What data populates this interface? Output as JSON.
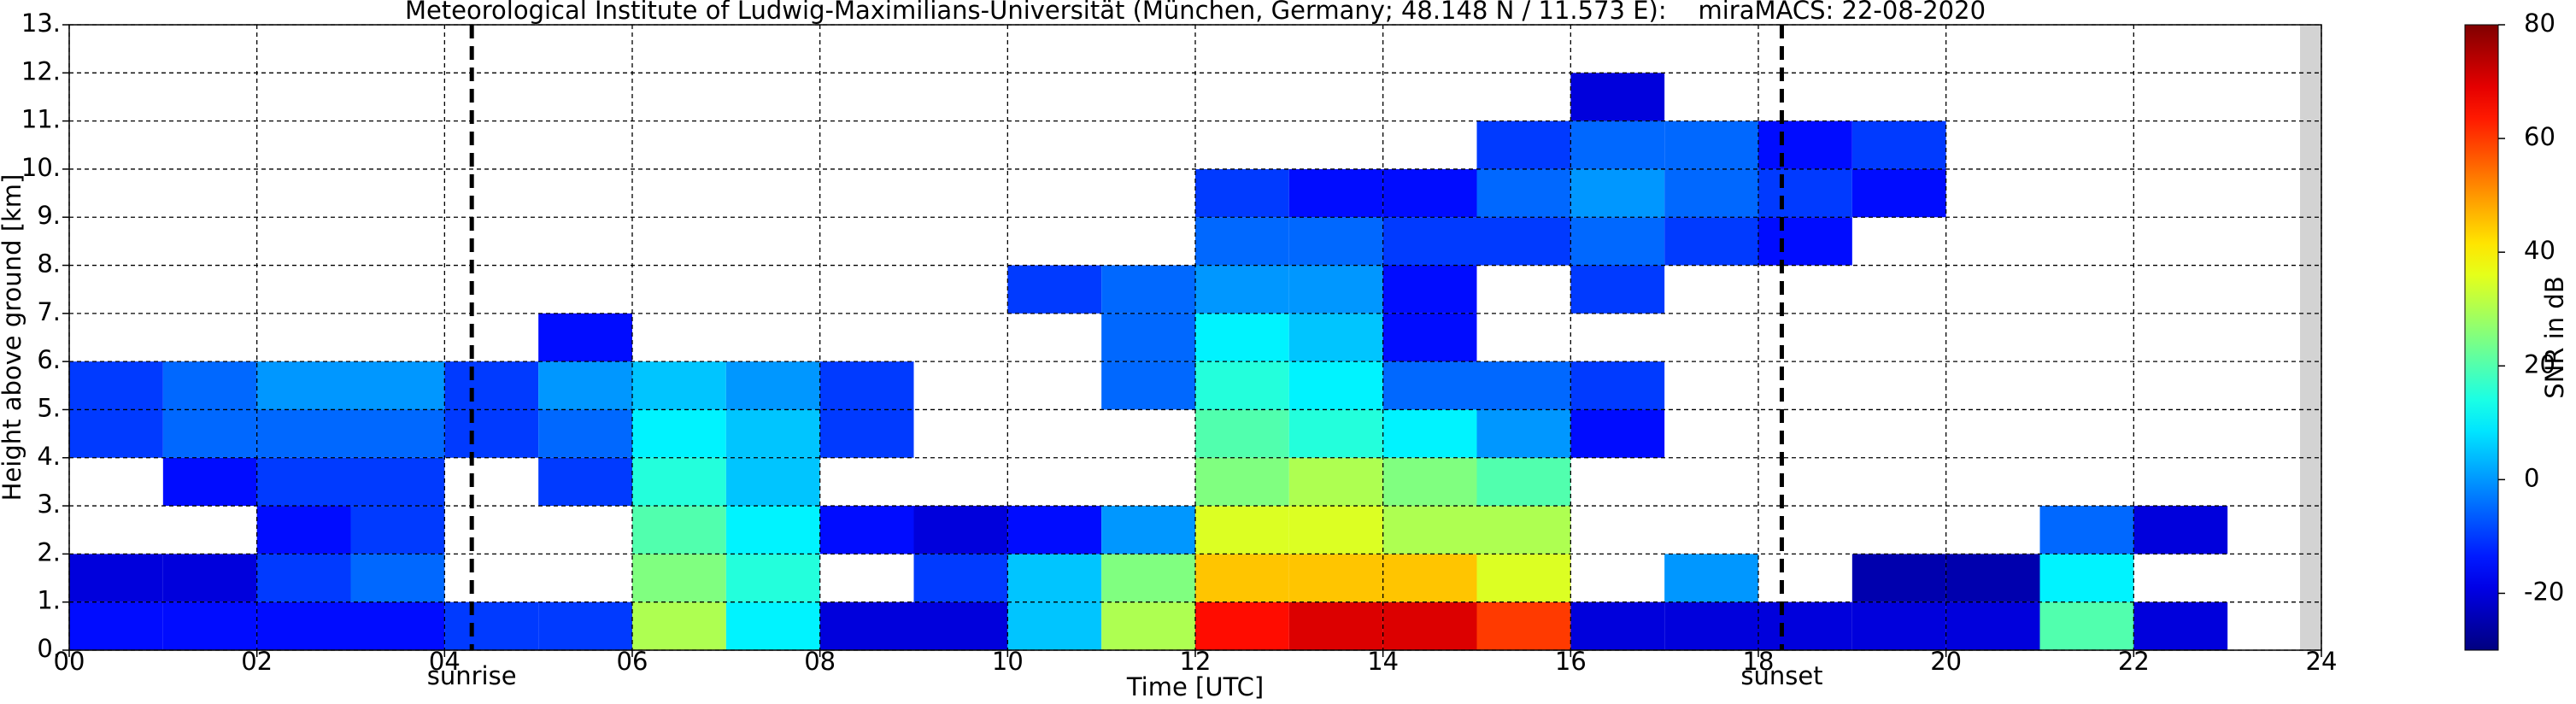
{
  "chart_data": {
    "type": "heatmap",
    "title": "Meteorological Institute of Ludwig-Maximilians-Universität (München, Germany; 48.148 N / 11.573 E):    miraMACS: 22-08-2020",
    "xlabel": "Time [UTC]",
    "ylabel": "Height above ground [km]",
    "colorbar_label": "SNR in dB",
    "colormap": "jet",
    "grid": true,
    "xlim": [
      0,
      24
    ],
    "ylim": [
      0,
      13
    ],
    "clim": [
      -30,
      80
    ],
    "xticks": [
      {
        "value": 0,
        "label": "00"
      },
      {
        "value": 2,
        "label": "02"
      },
      {
        "value": 4,
        "label": "04"
      },
      {
        "value": 6,
        "label": "06"
      },
      {
        "value": 8,
        "label": "08"
      },
      10,
      12,
      14,
      16,
      18,
      20,
      22,
      24
    ],
    "yticks": [
      {
        "value": 0,
        "label": "0."
      },
      {
        "value": 1,
        "label": "1."
      },
      {
        "value": 2,
        "label": "2."
      },
      {
        "value": 3,
        "label": "3."
      },
      {
        "value": 4,
        "label": "4."
      },
      {
        "value": 5,
        "label": "5."
      },
      {
        "value": 6,
        "label": "6."
      },
      {
        "value": 7,
        "label": "7."
      },
      {
        "value": 8,
        "label": "8."
      },
      {
        "value": 9,
        "label": "9."
      },
      {
        "value": 10,
        "label": "10."
      },
      {
        "value": 11,
        "label": "11."
      },
      {
        "value": 12,
        "label": "12."
      },
      {
        "value": 13,
        "label": "13."
      }
    ],
    "cticks": [
      -20,
      0,
      20,
      40,
      60,
      80
    ],
    "annotations": [
      {
        "text": "sunrise",
        "x": 4.29
      },
      {
        "text": "sunset",
        "x": 18.25
      }
    ],
    "x": [
      0,
      1,
      2,
      3,
      4,
      5,
      6,
      7,
      8,
      9,
      10,
      11,
      12,
      13,
      14,
      15,
      16,
      17,
      18,
      19,
      20,
      21,
      22,
      23
    ],
    "y": [
      0,
      1,
      2,
      3,
      4,
      5,
      6,
      7,
      8,
      9,
      10,
      11,
      12
    ],
    "z": [
      [
        -15,
        -15,
        -15,
        -15,
        -10,
        -10,
        30,
        10,
        -20,
        -20,
        5,
        30,
        65,
        70,
        70,
        60,
        -20,
        -20,
        -20,
        -20,
        -20,
        20,
        -20,
        null
      ],
      [
        -20,
        -20,
        -10,
        -5,
        null,
        null,
        25,
        15,
        null,
        -10,
        5,
        25,
        45,
        45,
        45,
        35,
        null,
        0,
        null,
        -25,
        -25,
        10,
        null,
        null
      ],
      [
        null,
        null,
        -15,
        -10,
        null,
        null,
        20,
        10,
        -15,
        -20,
        -15,
        0,
        35,
        35,
        30,
        30,
        null,
        null,
        null,
        null,
        null,
        -5,
        -20,
        null
      ],
      [
        null,
        -15,
        -10,
        -10,
        null,
        -10,
        15,
        5,
        null,
        null,
        null,
        null,
        25,
        30,
        25,
        20,
        null,
        null,
        null,
        null,
        null,
        null,
        null,
        null
      ],
      [
        -10,
        -5,
        -5,
        -5,
        -10,
        -5,
        10,
        5,
        -10,
        null,
        null,
        null,
        20,
        15,
        10,
        0,
        -15,
        null,
        null,
        null,
        null,
        null,
        null,
        null
      ],
      [
        -10,
        -5,
        0,
        0,
        -10,
        0,
        5,
        0,
        -10,
        null,
        null,
        -5,
        15,
        10,
        -5,
        -5,
        -10,
        null,
        null,
        null,
        null,
        null,
        null,
        null
      ],
      [
        null,
        null,
        null,
        null,
        null,
        -15,
        null,
        null,
        null,
        null,
        null,
        -5,
        10,
        5,
        -15,
        null,
        null,
        null,
        null,
        null,
        null,
        null,
        null,
        null
      ],
      [
        null,
        null,
        null,
        null,
        null,
        null,
        null,
        null,
        null,
        null,
        -10,
        -5,
        0,
        0,
        -15,
        null,
        -10,
        null,
        null,
        null,
        null,
        null,
        null,
        null
      ],
      [
        null,
        null,
        null,
        null,
        null,
        null,
        null,
        null,
        null,
        null,
        null,
        null,
        -5,
        -5,
        -10,
        -10,
        -5,
        -10,
        -15,
        null,
        null,
        null,
        null,
        null
      ],
      [
        null,
        null,
        null,
        null,
        null,
        null,
        null,
        null,
        null,
        null,
        null,
        null,
        -10,
        -15,
        -15,
        -5,
        0,
        -5,
        -10,
        -15,
        null,
        null,
        null,
        null
      ],
      [
        null,
        null,
        null,
        null,
        null,
        null,
        null,
        null,
        null,
        null,
        null,
        null,
        null,
        null,
        null,
        -10,
        -5,
        -5,
        -15,
        -10,
        null,
        null,
        null,
        null
      ],
      [
        null,
        null,
        null,
        null,
        null,
        null,
        null,
        null,
        null,
        null,
        null,
        null,
        null,
        null,
        null,
        null,
        -20,
        null,
        null,
        null,
        null,
        null,
        null,
        null
      ],
      [
        null,
        null,
        null,
        null,
        null,
        null,
        null,
        null,
        null,
        null,
        null,
        null,
        null,
        null,
        null,
        null,
        null,
        null,
        null,
        null,
        null,
        null,
        null,
        null
      ]
    ]
  }
}
